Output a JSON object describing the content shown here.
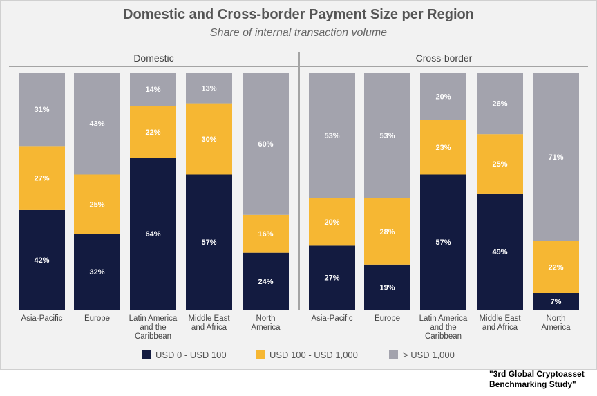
{
  "chart_data": {
    "type": "bar",
    "stacked": true,
    "title": "Domestic and Cross-border Payment Size per Region",
    "subtitle": "Share of internal transaction volume",
    "ylim": [
      0,
      100
    ],
    "legend_position": "bottom",
    "colors": {
      "USD 0 - USD 100": "#131b40",
      "USD 100 - USD 1,000": "#f6b733",
      "> USD 1,000": "#a3a3ad"
    },
    "panels": [
      {
        "name": "Domestic",
        "categories": [
          "Asia-Pacific",
          "Europe",
          "Latin America and the Caribbean",
          "Middle East and Africa",
          "North America"
        ],
        "category_lines": [
          [
            "Asia-Pacific"
          ],
          [
            "Europe"
          ],
          [
            "Latin America",
            "and the",
            "Caribbean"
          ],
          [
            "Middle East",
            "and Africa"
          ],
          [
            "North",
            "America"
          ]
        ],
        "series": [
          {
            "name": "USD 0 - USD 100",
            "values": [
              42,
              32,
              64,
              57,
              24
            ]
          },
          {
            "name": "USD 100 - USD 1,000",
            "values": [
              27,
              25,
              22,
              30,
              16
            ]
          },
          {
            "name": "> USD 1,000",
            "values": [
              31,
              43,
              14,
              13,
              60
            ]
          }
        ]
      },
      {
        "name": "Cross-border",
        "categories": [
          "Asia-Pacific",
          "Europe",
          "Latin America and the Caribbean",
          "Middle East and Africa",
          "North America"
        ],
        "category_lines": [
          [
            "Asia-Pacific"
          ],
          [
            "Europe"
          ],
          [
            "Latin America",
            "and the",
            "Caribbean"
          ],
          [
            "Middle East",
            "and Africa"
          ],
          [
            "North",
            "America"
          ]
        ],
        "series": [
          {
            "name": "USD 0 - USD 100",
            "values": [
              27,
              19,
              57,
              49,
              7
            ]
          },
          {
            "name": "USD 100 - USD 1,000",
            "values": [
              20,
              28,
              23,
              25,
              22
            ]
          },
          {
            "name": "> USD 1,000",
            "values": [
              53,
              53,
              20,
              26,
              71
            ]
          }
        ]
      }
    ]
  },
  "source_note": {
    "line1": "\"3rd Global Cryptoasset",
    "line2": "Benchmarking Study\""
  }
}
